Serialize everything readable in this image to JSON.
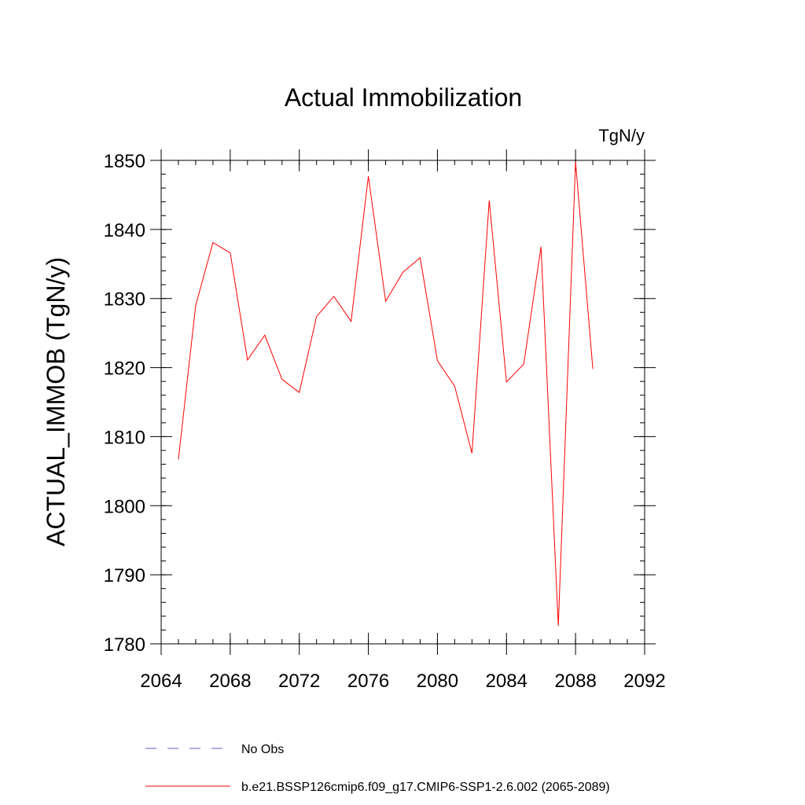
{
  "chart_data": {
    "type": "line",
    "title": "Actual Immobilization",
    "units_label": "TgN/y",
    "xlabel": "",
    "ylabel": "ACTUAL_IMMOB  (TgN/y)",
    "xlim": [
      2064,
      2092
    ],
    "ylim": [
      1780,
      1850
    ],
    "x_ticks": [
      "2064",
      "2068",
      "2072",
      "2076",
      "2080",
      "2084",
      "2088",
      "2092"
    ],
    "y_ticks": [
      "1780",
      "1790",
      "1800",
      "1810",
      "1820",
      "1830",
      "1840",
      "1850"
    ],
    "grid": false,
    "legend_position": "bottom",
    "series": [
      {
        "name": "No Obs",
        "color": "#6a5acd",
        "dash": "dashed",
        "x": [],
        "y": []
      },
      {
        "name": "b.e21.BSSP126cmip6.f09_g17.CMIP6-SSP1-2.6.002 (2065-2089)",
        "color": "#ff0000",
        "dash": "solid",
        "x": [
          2065,
          2066,
          2067,
          2068,
          2069,
          2070,
          2071,
          2072,
          2073,
          2074,
          2075,
          2076,
          2077,
          2078,
          2079,
          2080,
          2081,
          2082,
          2083,
          2084,
          2085,
          2086,
          2087,
          2088,
          2089
        ],
        "y": [
          1806.7,
          1829.0,
          1838.1,
          1836.6,
          1821.1,
          1824.7,
          1818.3,
          1816.4,
          1827.4,
          1830.3,
          1826.7,
          1847.7,
          1829.6,
          1833.8,
          1835.9,
          1821.0,
          1817.3,
          1807.6,
          1844.2,
          1817.9,
          1820.5,
          1837.5,
          1782.6,
          1849.8,
          1819.8
        ]
      }
    ]
  }
}
